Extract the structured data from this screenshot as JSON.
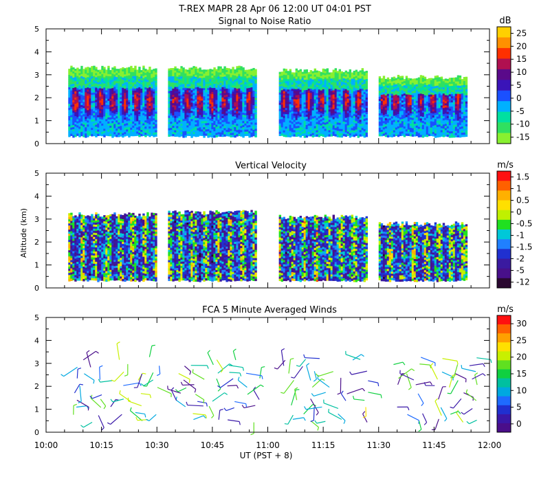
{
  "header": {
    "title": "T-REX  MAPR 28 Apr 06  12:00 UT  04:01  PST"
  },
  "x_axis": {
    "label": "UT  (PST + 8)",
    "tick_labels": [
      "10:00",
      "10:15",
      "10:30",
      "10:45",
      "11:00",
      "11:15",
      "11:30",
      "11:45",
      "12:00"
    ]
  },
  "y_axis": {
    "label": "Altitude (km)",
    "tick_labels": [
      "0",
      "1",
      "2",
      "3",
      "4",
      "5"
    ]
  },
  "chart_data": [
    {
      "type": "heatmap",
      "title": "Signal to Noise Ratio",
      "xlabel": "UT  (PST + 8)",
      "ylabel": "Altitude (km)",
      "xlim": [
        "10:00",
        "12:00"
      ],
      "ylim": [
        0,
        5
      ],
      "colorbar": {
        "unit": "dB",
        "tick_labels": [
          "25",
          "20",
          "15",
          "10",
          "5",
          "0",
          "-5",
          "-10",
          "-15"
        ],
        "colors": [
          "#ffd000",
          "#ff9000",
          "#ff3000",
          "#b01050",
          "#5a0a8a",
          "#3a14b8",
          "#1a50ff",
          "#00b0ff",
          "#00e0a0",
          "#30e060",
          "#88f030"
        ]
      },
      "data_segments": [
        {
          "start": "10:06",
          "end": "10:30",
          "top_km": 3.3
        },
        {
          "start": "10:33",
          "end": "10:57",
          "top_km": 3.3
        },
        {
          "start": "11:03",
          "end": "11:27",
          "top_km": 3.2
        },
        {
          "start": "11:30",
          "end": "11:54",
          "top_km": 2.9
        }
      ]
    },
    {
      "type": "heatmap",
      "title": "Vertical Velocity",
      "xlabel": "UT  (PST + 8)",
      "ylabel": "Altitude (km)",
      "xlim": [
        "10:00",
        "12:00"
      ],
      "ylim": [
        0,
        5
      ],
      "colorbar": {
        "unit": "m/s",
        "tick_labels": [
          "1.5",
          "1",
          "0.5",
          "0",
          "-0.5",
          "-1",
          "-1.5",
          "-2",
          "-5",
          "-12"
        ],
        "colors": [
          "#ff1010",
          "#ff6000",
          "#ffb000",
          "#ffe000",
          "#c0f000",
          "#20e020",
          "#00c8d8",
          "#2080ff",
          "#2030d0",
          "#3a1aa0",
          "#48108a",
          "#2a0830"
        ]
      },
      "data_segments": [
        {
          "start": "10:06",
          "end": "10:30",
          "top_km": 3.2
        },
        {
          "start": "10:33",
          "end": "10:57",
          "top_km": 3.3
        },
        {
          "start": "11:03",
          "end": "11:27",
          "top_km": 3.1
        },
        {
          "start": "11:30",
          "end": "11:54",
          "top_km": 2.8
        }
      ]
    },
    {
      "type": "scatter",
      "title": "FCA 5 Minute Averaged Winds",
      "xlabel": "UT  (PST + 8)",
      "ylabel": "Altitude (km)",
      "xlim": [
        "10:00",
        "12:00"
      ],
      "ylim": [
        0,
        5
      ],
      "colorbar": {
        "unit": "m/s",
        "tick_labels": [
          "30",
          "25",
          "20",
          "15",
          "10",
          "5",
          "0"
        ],
        "colors": [
          "#ff1010",
          "#ff6000",
          "#ffa000",
          "#ffe000",
          "#c8f000",
          "#60e020",
          "#10d040",
          "#00c0a0",
          "#00a8e0",
          "#1e6bff",
          "#2030d0",
          "#3a18a8",
          "#4a0e8a"
        ]
      },
      "barb_times": [
        "10:09",
        "10:14",
        "10:19",
        "10:24",
        "10:29",
        "10:36",
        "10:41",
        "10:46",
        "10:51",
        "10:56",
        "11:06",
        "11:11",
        "11:16",
        "11:21",
        "11:26",
        "11:36",
        "11:41",
        "11:46",
        "11:51",
        "11:56"
      ],
      "barb_altitude_range_km": [
        0.5,
        3.3
      ]
    }
  ]
}
